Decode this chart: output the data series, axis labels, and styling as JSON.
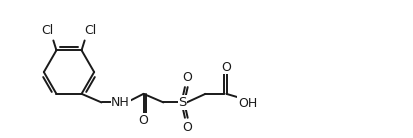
{
  "bg_color": "#ffffff",
  "line_color": "#1a1a1a",
  "line_width": 1.4,
  "font_size": 8.5,
  "figsize": [
    4.14,
    1.38
  ],
  "dpi": 100,
  "xlim": [
    0,
    13.5
  ],
  "ylim": [
    0,
    4.5
  ]
}
